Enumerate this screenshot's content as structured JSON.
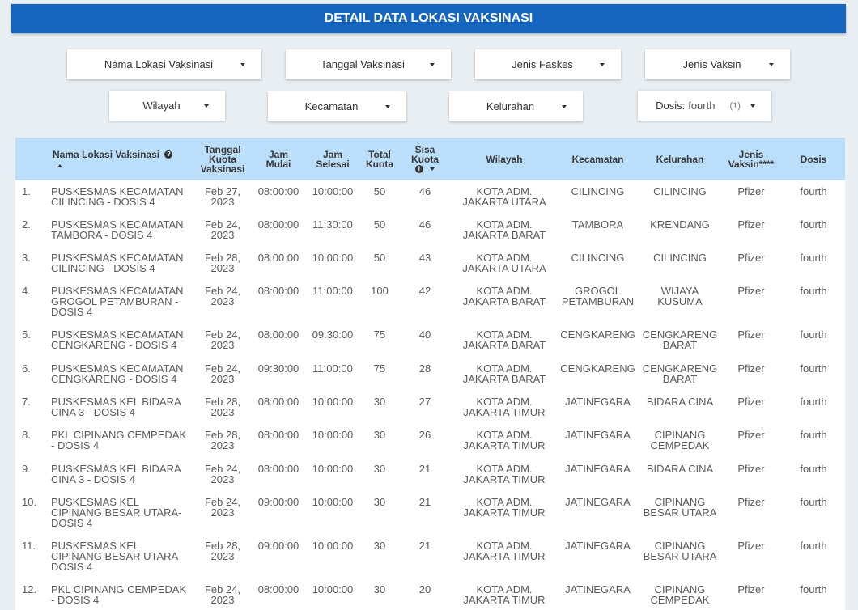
{
  "header": {
    "title": "DETAIL DATA LOKASI VAKSINASI"
  },
  "filters": {
    "row1": [
      "Nama Lokasi Vaksinasi",
      "Tanggal Vaksinasi",
      "Jenis Faskes",
      "Jenis Vaksin"
    ],
    "row2": [
      "Wilayah",
      "Kecamatan",
      "Kelurahan"
    ],
    "dosis": {
      "label": "Dosis:",
      "value": "fourth",
      "count": "(1)"
    }
  },
  "table": {
    "columns": [
      "",
      "Nama Lokasi Vaksinasi",
      "Tanggal Kuota Vaksinasi",
      "Jam Mulai",
      "Jam Selesai",
      "Total Kuota",
      "Sisa Kuota",
      "Wilayah",
      "Kecamatan",
      "Kelurahan",
      "Jenis Vaksin****",
      "Dosis"
    ],
    "rows": [
      [
        "1.",
        "PUSKESMAS KECAMATAN CILINCING - DOSIS 4",
        "Feb 27, 2023",
        "08:00:00",
        "10:00:00",
        "50",
        "46",
        "KOTA ADM. JAKARTA UTARA",
        "CILINCING",
        "CILINCING",
        "Pfizer",
        "fourth"
      ],
      [
        "2.",
        "PUSKESMAS KECAMATAN TAMBORA - DOSIS 4",
        "Feb 24, 2023",
        "08:00:00",
        "11:30:00",
        "50",
        "46",
        "KOTA ADM. JAKARTA BARAT",
        "TAMBORA",
        "KRENDANG",
        "Pfizer",
        "fourth"
      ],
      [
        "3.",
        "PUSKESMAS KECAMATAN CILINCING - DOSIS 4",
        "Feb 28, 2023",
        "08:00:00",
        "10:00:00",
        "50",
        "43",
        "KOTA ADM. JAKARTA UTARA",
        "CILINCING",
        "CILINCING",
        "Pfizer",
        "fourth"
      ],
      [
        "4.",
        "PUSKESMAS KECAMATAN GROGOL PETAMBURAN - DOSIS 4",
        "Feb 24, 2023",
        "08:00:00",
        "11:00:00",
        "100",
        "42",
        "KOTA ADM. JAKARTA BARAT",
        "GROGOL PETAMBURAN",
        "WIJAYA KUSUMA",
        "Pfizer",
        "fourth"
      ],
      [
        "5.",
        "PUSKESMAS KECAMATAN CENGKARENG - DOSIS 4",
        "Feb 24, 2023",
        "08:00:00",
        "09:30:00",
        "75",
        "40",
        "KOTA ADM. JAKARTA BARAT",
        "CENGKARENG",
        "CENGKARENG BARAT",
        "Pfizer",
        "fourth"
      ],
      [
        "6.",
        "PUSKESMAS KECAMATAN CENGKARENG - DOSIS 4",
        "Feb 24, 2023",
        "09:30:00",
        "11:00:00",
        "75",
        "28",
        "KOTA ADM. JAKARTA BARAT",
        "CENGKARENG",
        "CENGKARENG BARAT",
        "Pfizer",
        "fourth"
      ],
      [
        "7.",
        "PUSKESMAS KEL BIDARA CINA 3 - DOSIS 4",
        "Feb 28, 2023",
        "08:00:00",
        "10:00:00",
        "30",
        "27",
        "KOTA ADM. JAKARTA TIMUR",
        "JATINEGARA",
        "BIDARA CINA",
        "Pfizer",
        "fourth"
      ],
      [
        "8.",
        "PKL CIPINANG CEMPEDAK - DOSIS 4",
        "Feb 28, 2023",
        "08:00:00",
        "10:00:00",
        "30",
        "26",
        "KOTA ADM. JAKARTA TIMUR",
        "JATINEGARA",
        "CIPINANG CEMPEDAK",
        "Pfizer",
        "fourth"
      ],
      [
        "9.",
        "PUSKESMAS KEL BIDARA CINA 3 - DOSIS 4",
        "Feb 24, 2023",
        "08:00:00",
        "10:00:00",
        "30",
        "21",
        "KOTA ADM. JAKARTA TIMUR",
        "JATINEGARA",
        "BIDARA CINA",
        "Pfizer",
        "fourth"
      ],
      [
        "10.",
        "PUSKESMAS KEL CIPINANG BESAR UTARA-DOSIS 4",
        "Feb 24, 2023",
        "09:00:00",
        "10:00:00",
        "30",
        "21",
        "KOTA ADM. JAKARTA TIMUR",
        "JATINEGARA",
        "CIPINANG BESAR UTARA",
        "Pfizer",
        "fourth"
      ],
      [
        "11.",
        "PUSKESMAS KEL CIPINANG BESAR UTARA-DOSIS 4",
        "Feb 28, 2023",
        "09:00:00",
        "10:00:00",
        "30",
        "21",
        "KOTA ADM. JAKARTA TIMUR",
        "JATINEGARA",
        "CIPINANG BESAR UTARA",
        "Pfizer",
        "fourth"
      ],
      [
        "12.",
        "PKL CIPINANG CEMPEDAK - DOSIS 4",
        "Feb 24, 2023",
        "08:00:00",
        "10:00:00",
        "30",
        "20",
        "KOTA ADM. JAKARTA TIMUR",
        "JATINEGARA",
        "CIPINANG CEMPEDAK",
        "Pfizer",
        "fourth"
      ]
    ]
  }
}
